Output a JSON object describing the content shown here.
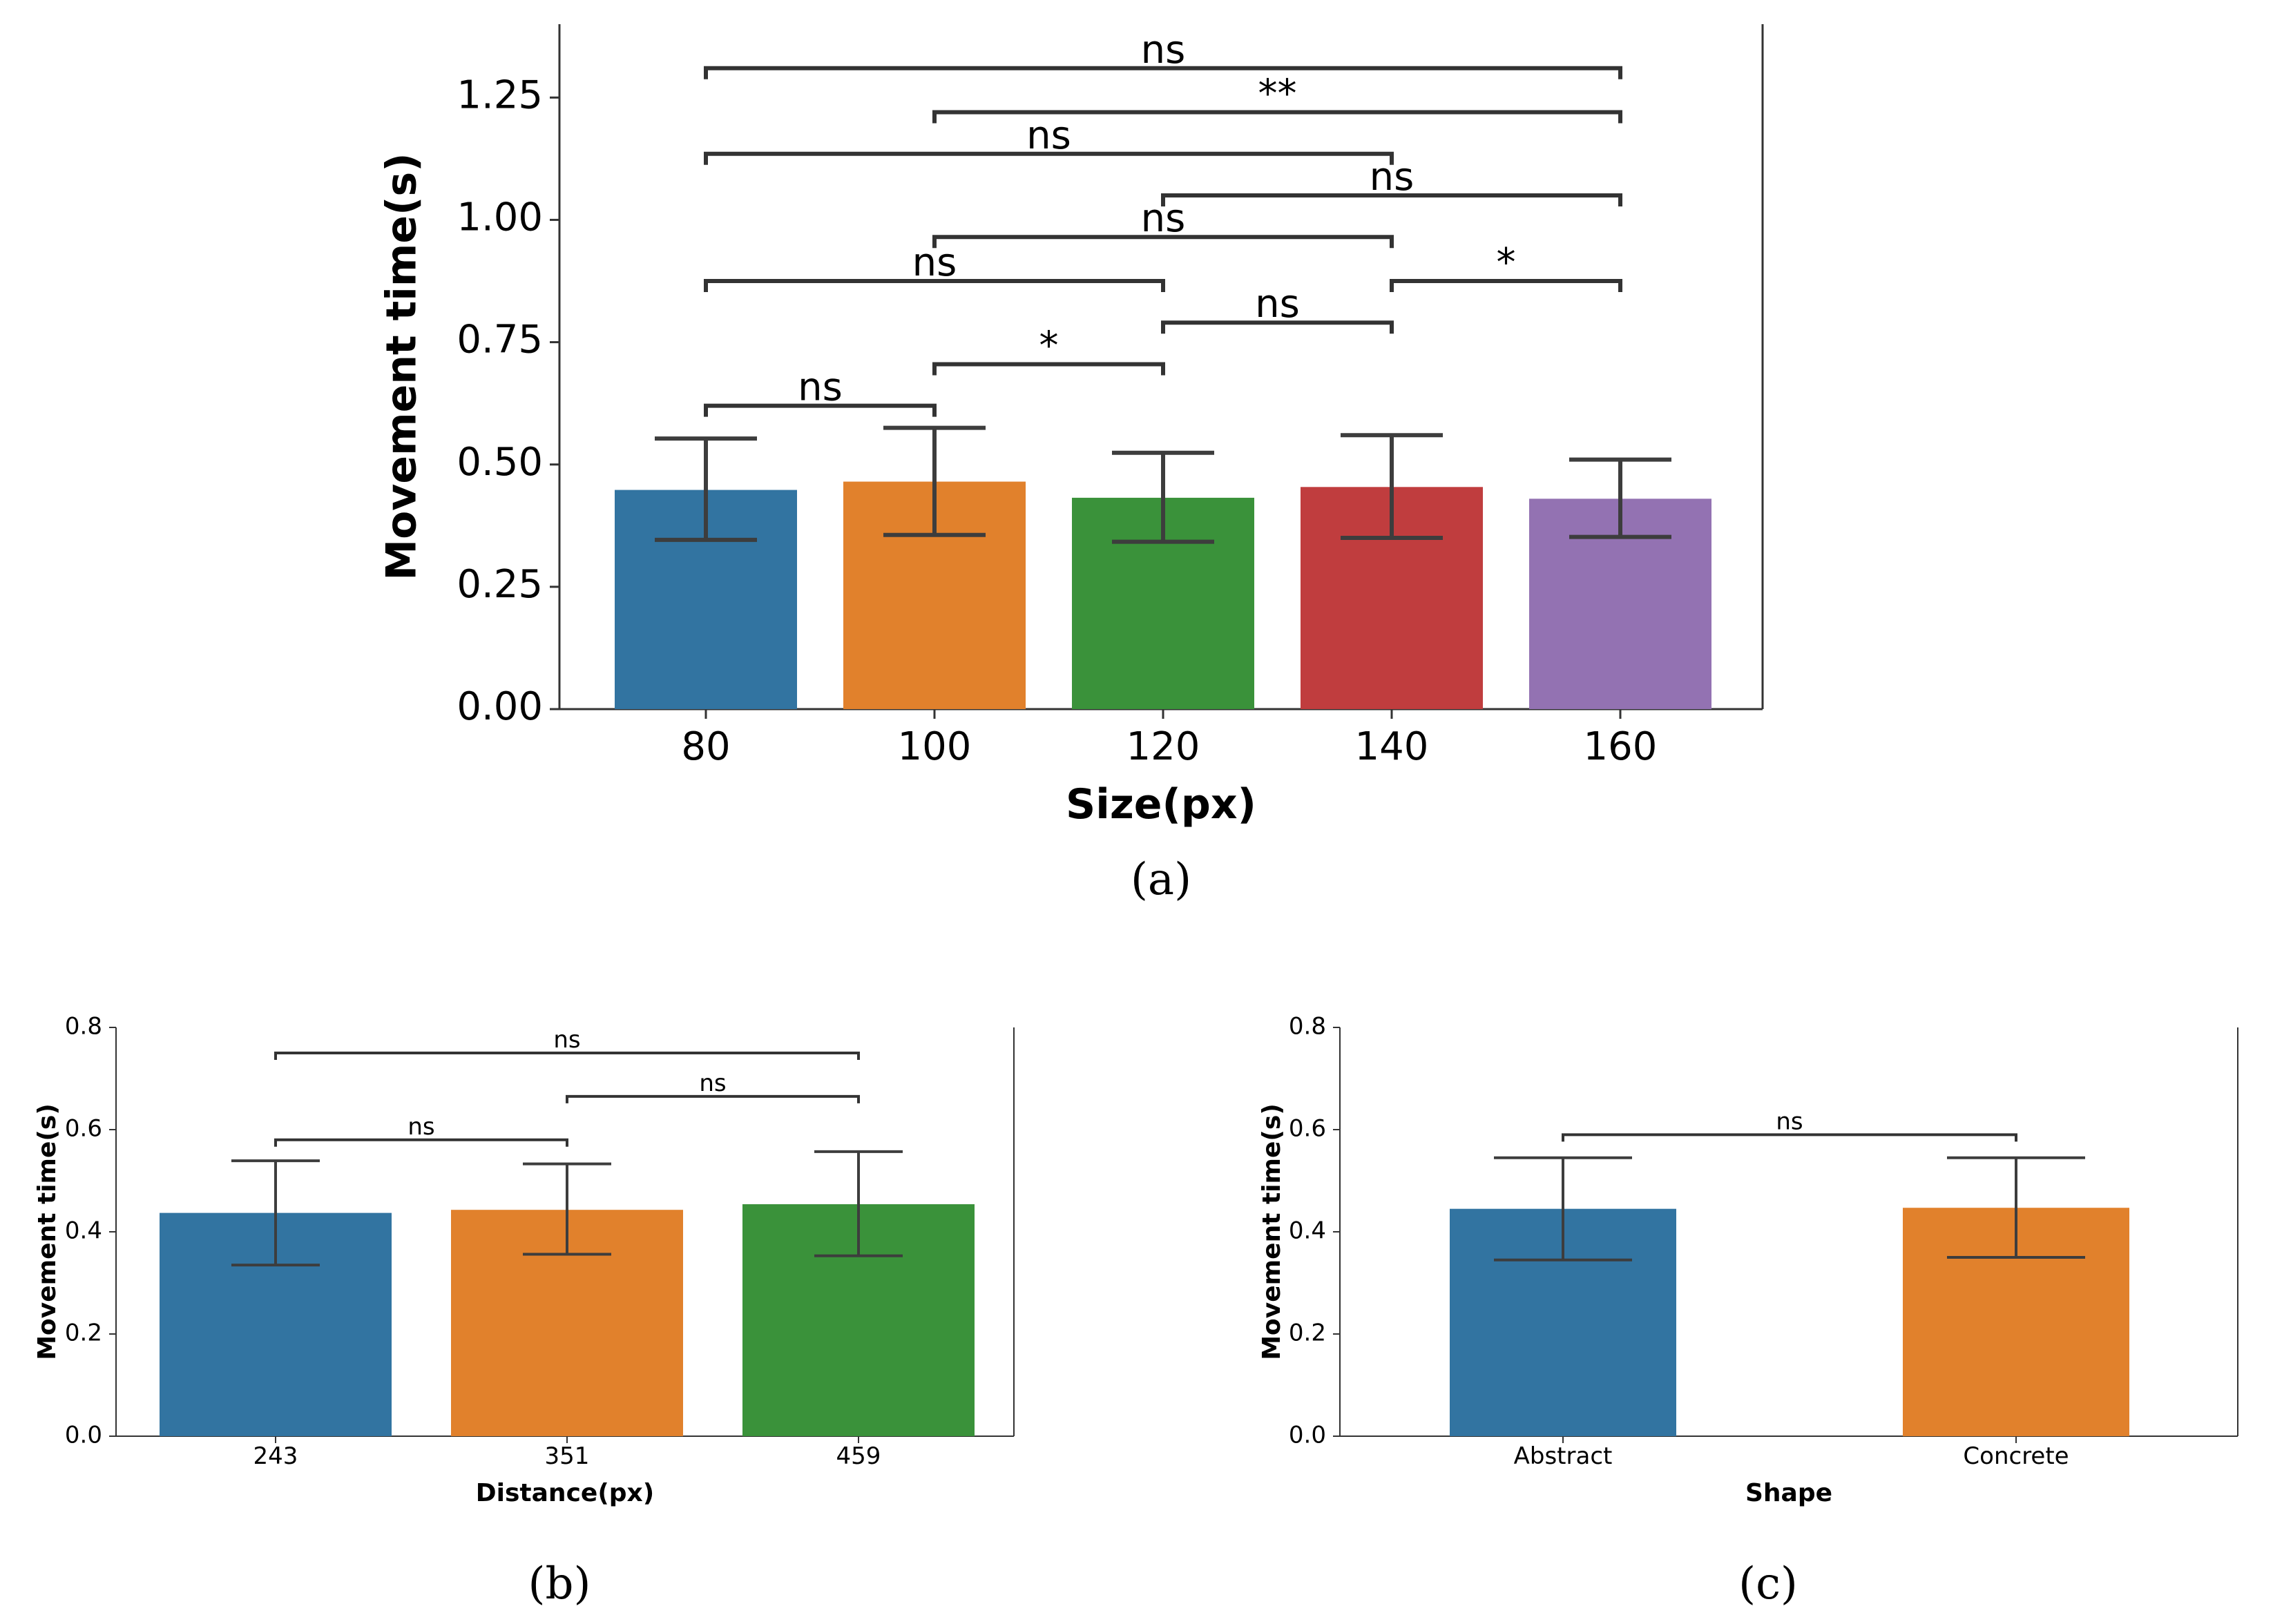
{
  "chart_data": [
    {
      "id": "a",
      "type": "bar",
      "panel_label": "(a)",
      "xlabel": "Size(px)",
      "ylabel": "Movement time(s)",
      "categories": [
        "80",
        "100",
        "120",
        "140",
        "160"
      ],
      "values": [
        0.448,
        0.465,
        0.432,
        0.454,
        0.43
      ],
      "error_low": [
        0.346,
        0.356,
        0.342,
        0.35,
        0.352
      ],
      "error_high": [
        0.553,
        0.575,
        0.524,
        0.56,
        0.51
      ],
      "colors": [
        "#3274a1",
        "#e1812c",
        "#3a923a",
        "#c03d3e",
        "#9372b2"
      ],
      "ylim": [
        0,
        1.4
      ],
      "yticks": [
        "0.00",
        "0.25",
        "0.50",
        "0.75",
        "1.00",
        "1.25"
      ],
      "ytick_values": [
        0,
        0.25,
        0.5,
        0.75,
        1.0,
        1.25
      ],
      "significance": [
        {
          "from": 0,
          "to": 1,
          "y": 0.62,
          "label": "ns"
        },
        {
          "from": 1,
          "to": 2,
          "y": 0.705,
          "label": "*"
        },
        {
          "from": 2,
          "to": 3,
          "y": 0.79,
          "label": "ns"
        },
        {
          "from": 3,
          "to": 4,
          "y": 0.875,
          "label": "*"
        },
        {
          "from": 0,
          "to": 2,
          "y": 0.875,
          "label": "ns"
        },
        {
          "from": 1,
          "to": 3,
          "y": 0.965,
          "label": "ns"
        },
        {
          "from": 2,
          "to": 4,
          "y": 1.05,
          "label": "ns"
        },
        {
          "from": 0,
          "to": 3,
          "y": 1.135,
          "label": "ns"
        },
        {
          "from": 1,
          "to": 4,
          "y": 1.22,
          "label": "**"
        },
        {
          "from": 0,
          "to": 4,
          "y": 1.31,
          "label": "ns"
        }
      ]
    },
    {
      "id": "b",
      "type": "bar",
      "panel_label": "(b)",
      "xlabel": "Distance(px)",
      "ylabel": "Movement time(s)",
      "categories": [
        "243",
        "351",
        "459"
      ],
      "values": [
        0.437,
        0.443,
        0.454
      ],
      "error_low": [
        0.335,
        0.356,
        0.353
      ],
      "error_high": [
        0.539,
        0.533,
        0.557
      ],
      "colors": [
        "#3274a1",
        "#e1812c",
        "#3a923a"
      ],
      "ylim": [
        0,
        0.8
      ],
      "yticks": [
        "0.0",
        "0.2",
        "0.4",
        "0.6",
        "0.8"
      ],
      "ytick_values": [
        0,
        0.2,
        0.4,
        0.6,
        0.8
      ],
      "significance": [
        {
          "from": 0,
          "to": 1,
          "y": 0.58,
          "label": "ns"
        },
        {
          "from": 1,
          "to": 2,
          "y": 0.665,
          "label": "ns"
        },
        {
          "from": 0,
          "to": 2,
          "y": 0.75,
          "label": "ns"
        }
      ]
    },
    {
      "id": "c",
      "type": "bar",
      "panel_label": "(c)",
      "xlabel": "Shape",
      "ylabel": "Movement time(s)",
      "categories": [
        "Abstract",
        "Concrete"
      ],
      "values": [
        0.445,
        0.447
      ],
      "error_low": [
        0.345,
        0.35
      ],
      "error_high": [
        0.545,
        0.545
      ],
      "colors": [
        "#3274a1",
        "#e1812c"
      ],
      "ylim": [
        0,
        0.8
      ],
      "yticks": [
        "0.0",
        "0.2",
        "0.4",
        "0.6",
        "0.8"
      ],
      "ytick_values": [
        0,
        0.2,
        0.4,
        0.6,
        0.8
      ],
      "significance": [
        {
          "from": 0,
          "to": 1,
          "y": 0.59,
          "label": "ns"
        }
      ]
    }
  ]
}
